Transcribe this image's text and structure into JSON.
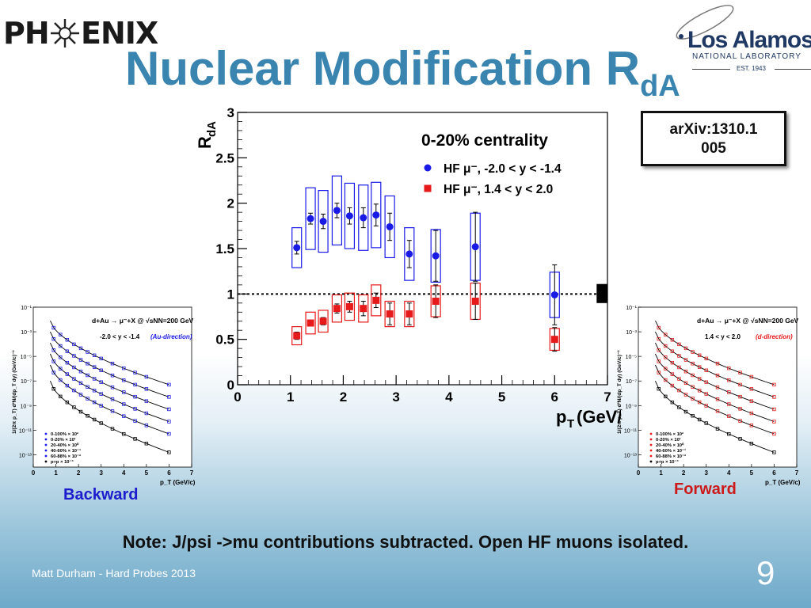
{
  "slide": {
    "title_main": "Nuclear Modification R",
    "title_sub": "dA",
    "arxiv_line1": "arXiv:1310.1",
    "arxiv_line2": "005",
    "backward_label": "Backward",
    "forward_label": "Forward",
    "note": "Note: J/psi ->mu contributions subtracted.  Open HF muons isolated.",
    "footer": "Matt Durham - Hard Probes 2013",
    "page_number": "9"
  },
  "logos": {
    "phenix_left": "PH",
    "phenix_right": "ENIX",
    "lanl_name": "Los Alamos",
    "lanl_sub": "NATIONAL LABORATORY",
    "lanl_est": "EST. 1943"
  },
  "colors": {
    "title": "#3a84b0",
    "blue_series": "#1a1ae6",
    "red_series": "#e61a1a",
    "lanl": "#1f3864"
  },
  "chart_data": [
    {
      "type": "scatter",
      "title": "0-20% centrality",
      "xlabel": "p_T (GeV/c)",
      "ylabel": "R_dA",
      "xlim": [
        0,
        7
      ],
      "ylim": [
        0,
        3
      ],
      "x_ticks": [
        "0",
        "1",
        "2",
        "3",
        "4",
        "5",
        "6",
        "7"
      ],
      "y_ticks": [
        "0",
        "0.5",
        "1",
        "1.5",
        "2",
        "2.5",
        "3"
      ],
      "reference_line": 1,
      "legend_position": "top-right",
      "series": [
        {
          "name": "HF μ⁻, -2.0 < y < -1.4",
          "color": "#1a1ae6",
          "marker": "circle",
          "points": [
            {
              "x": 1.12,
              "y": 1.51,
              "stat": 0.07,
              "sys": 0.22
            },
            {
              "x": 1.38,
              "y": 1.83,
              "stat": 0.06,
              "sys": 0.34
            },
            {
              "x": 1.62,
              "y": 1.8,
              "stat": 0.08,
              "sys": 0.34
            },
            {
              "x": 1.88,
              "y": 1.92,
              "stat": 0.08,
              "sys": 0.38
            },
            {
              "x": 2.12,
              "y": 1.86,
              "stat": 0.09,
              "sys": 0.36
            },
            {
              "x": 2.38,
              "y": 1.84,
              "stat": 0.11,
              "sys": 0.36
            },
            {
              "x": 2.62,
              "y": 1.87,
              "stat": 0.12,
              "sys": 0.36
            },
            {
              "x": 2.88,
              "y": 1.74,
              "stat": 0.15,
              "sys": 0.34
            },
            {
              "x": 3.25,
              "y": 1.44,
              "stat": 0.15,
              "sys": 0.29
            },
            {
              "x": 3.75,
              "y": 1.42,
              "stat": 0.28,
              "sys": 0.29
            },
            {
              "x": 4.5,
              "y": 1.52,
              "stat": 0.38,
              "sys": 0.37
            },
            {
              "x": 6.0,
              "y": 0.99,
              "stat": 0.33,
              "sys": 0.25
            }
          ]
        },
        {
          "name": "HF μ⁻,  1.4 < y < 2.0",
          "color": "#e61a1a",
          "marker": "square",
          "points": [
            {
              "x": 1.12,
              "y": 0.54,
              "stat": 0.04,
              "sys": 0.1
            },
            {
              "x": 1.38,
              "y": 0.68,
              "stat": 0.03,
              "sys": 0.12
            },
            {
              "x": 1.62,
              "y": 0.7,
              "stat": 0.04,
              "sys": 0.12
            },
            {
              "x": 1.88,
              "y": 0.84,
              "stat": 0.05,
              "sys": 0.15
            },
            {
              "x": 2.12,
              "y": 0.86,
              "stat": 0.06,
              "sys": 0.15
            },
            {
              "x": 2.38,
              "y": 0.84,
              "stat": 0.08,
              "sys": 0.15
            },
            {
              "x": 2.62,
              "y": 0.93,
              "stat": 0.08,
              "sys": 0.17
            },
            {
              "x": 2.88,
              "y": 0.78,
              "stat": 0.12,
              "sys": 0.14
            },
            {
              "x": 3.25,
              "y": 0.78,
              "stat": 0.12,
              "sys": 0.14
            },
            {
              "x": 3.75,
              "y": 0.92,
              "stat": 0.18,
              "sys": 0.17
            },
            {
              "x": 4.5,
              "y": 0.92,
              "stat": 0.2,
              "sys": 0.2
            },
            {
              "x": 6.0,
              "y": 0.5,
              "stat": 0.13,
              "sys": 0.12
            }
          ]
        }
      ],
      "global_uncertainty": {
        "x": 6.9,
        "low": 0.9,
        "high": 1.11
      }
    },
    {
      "type": "scatter",
      "title": "d+Au → μ⁻+X @ √sNN=200 GeV",
      "subtitle": "-2.0 < y < -1.4",
      "annotation": "(Au-direction)",
      "xlabel": "p_T (GeV/c)",
      "ylabel": "1/(2π p_T) d²N/(dp_T dy) (GeV/c)⁻²",
      "y_scale": "log",
      "xlim": [
        0,
        7
      ],
      "ylim": [
        1e-14,
        0.1
      ],
      "x_ticks": [
        "0",
        "1",
        "2",
        "3",
        "4",
        "5",
        "6",
        "7"
      ],
      "y_ticks": [
        "10⁻¹",
        "10⁻³",
        "10⁻⁵",
        "10⁻⁷",
        "10⁻⁹",
        "10⁻¹¹",
        "10⁻¹³"
      ],
      "color": "#1a1ae6",
      "legend_position": "bottom-left",
      "legend": [
        "0-100% × 10²",
        "0-20% × 10¹",
        "20-40% × 10⁰",
        "40-60% × 10⁻¹",
        "60-88% × 10⁻²",
        "p+p × 10⁻³"
      ],
      "curves_log10_start": [
        -2.1,
        -3.0,
        -3.9,
        -4.8,
        -5.7,
        -7.0
      ],
      "curves_log10_end": [
        -7.3,
        -8.3,
        -9.3,
        -10.3,
        -11.3,
        -12.8
      ]
    },
    {
      "type": "scatter",
      "title": "d+Au → μ⁻+X @ √sNN=200 GeV",
      "subtitle": "1.4 < y < 2.0",
      "annotation": "(d-direction)",
      "xlabel": "p_T (GeV/c)",
      "ylabel": "1/(2π p_T) d²N/(dp_T dy) (GeV/c)⁻²",
      "y_scale": "log",
      "xlim": [
        0,
        7
      ],
      "ylim": [
        1e-14,
        0.1
      ],
      "x_ticks": [
        "0",
        "1",
        "2",
        "3",
        "4",
        "5",
        "6",
        "7"
      ],
      "y_ticks": [
        "10⁻¹",
        "10⁻³",
        "10⁻⁵",
        "10⁻⁷",
        "10⁻⁹",
        "10⁻¹¹",
        "10⁻¹³"
      ],
      "color": "#e61a1a",
      "legend_position": "bottom-left",
      "legend": [
        "0-100% × 10²",
        "0-20% × 10¹",
        "20-40% × 10⁰",
        "40-60% × 10⁻¹",
        "60-88% × 10⁻²",
        "p+p × 10⁻³"
      ],
      "curves_log10_start": [
        -2.1,
        -3.0,
        -3.9,
        -4.8,
        -5.7,
        -7.0
      ],
      "curves_log10_end": [
        -7.3,
        -8.3,
        -9.3,
        -10.3,
        -11.3,
        -12.8
      ]
    }
  ]
}
